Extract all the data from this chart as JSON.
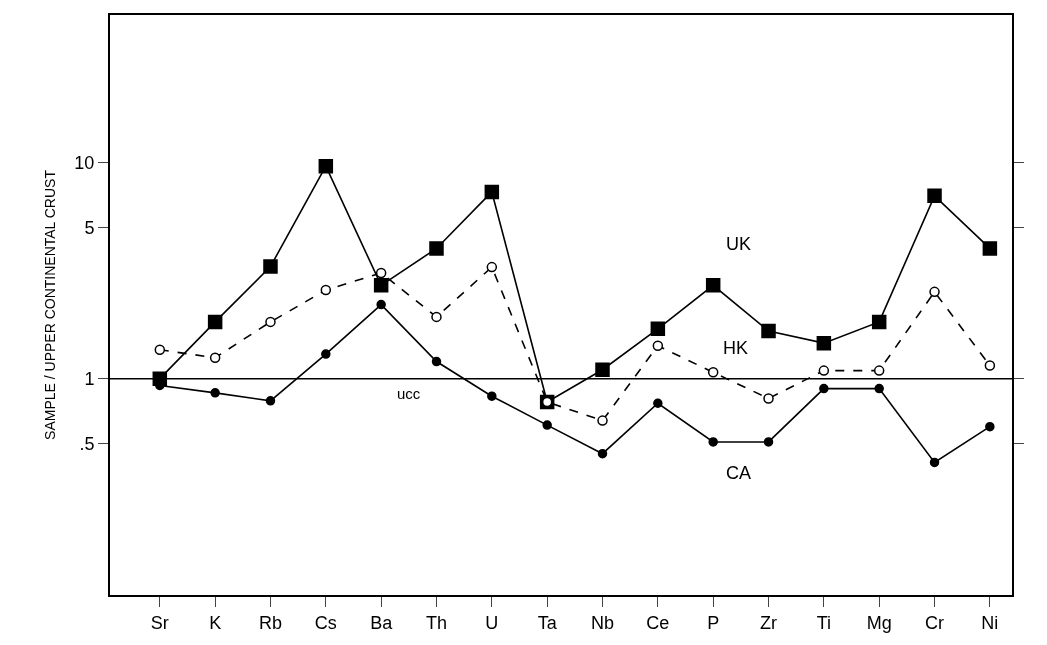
{
  "chart_data": {
    "type": "line",
    "ylabel": "SAMPLE / UPPER CONTINENTAL CRUST",
    "categories": [
      "Sr",
      "K",
      "Rb",
      "Cs",
      "Ba",
      "Th",
      "U",
      "Ta",
      "Nb",
      "Ce",
      "P",
      "Zr",
      "Ti",
      "Mg",
      "Cr",
      "Ni"
    ],
    "series": [
      {
        "name": "UK",
        "color": "#000000",
        "marker": "square",
        "line_style": "solid",
        "values": [
          1.0,
          1.83,
          3.3,
          9.6,
          2.7,
          4.0,
          7.3,
          0.78,
          1.1,
          1.7,
          2.7,
          1.66,
          1.46,
          1.83,
          7.0,
          4.0
        ]
      },
      {
        "name": "HK",
        "color": "#000000",
        "marker": "circle",
        "line_style": "dashed",
        "values": [
          1.36,
          1.25,
          1.83,
          2.57,
          3.08,
          1.93,
          3.28,
          0.78,
          0.64,
          1.42,
          1.07,
          0.81,
          1.09,
          1.09,
          2.52,
          1.15
        ]
      },
      {
        "name": "CA",
        "color": "#000000",
        "marker": "circle",
        "line_style": "solid",
        "values": [
          0.93,
          0.86,
          0.79,
          1.3,
          2.2,
          1.2,
          0.83,
          0.61,
          0.45,
          0.77,
          0.51,
          0.51,
          0.9,
          0.9,
          0.41,
          0.6
        ]
      }
    ],
    "log": "y",
    "ylim": [
      0.1,
      48
    ],
    "yticks": [
      {
        "value": 0.5,
        "label": ".5"
      },
      1,
      5,
      10
    ],
    "ref_lines": [
      {
        "axis": "y",
        "value": 1,
        "label": "ucc",
        "color": "#000000"
      }
    ],
    "legend": false
  }
}
